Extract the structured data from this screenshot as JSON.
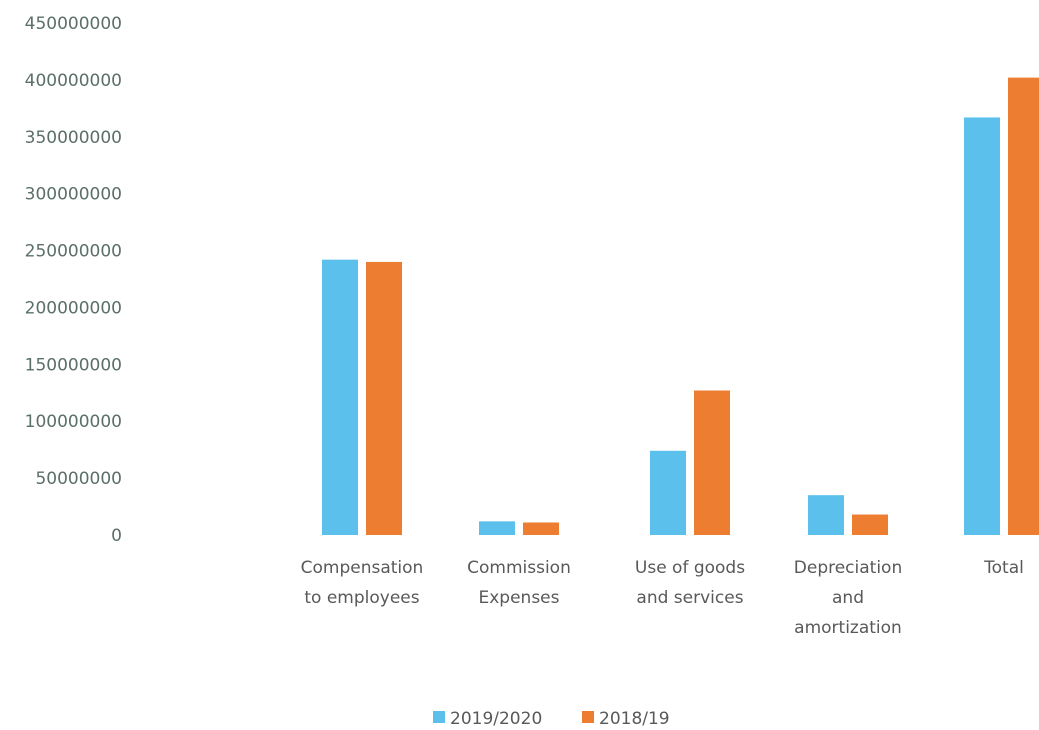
{
  "chart_data": {
    "type": "bar",
    "title": "",
    "xlabel": "",
    "ylabel": "",
    "categories": [
      [
        "Compensation",
        "to employees"
      ],
      [
        "Commission",
        "Expenses"
      ],
      [
        "Use of goods",
        "and services"
      ],
      [
        "Depreciation",
        "and",
        "amortization"
      ],
      [
        "Total"
      ]
    ],
    "series": [
      {
        "name": "2019/2020",
        "color": "#5bc0eb",
        "values": [
          242000000,
          12000000,
          74000000,
          35000000,
          367000000
        ]
      },
      {
        "name": "2018/19",
        "color": "#ed7d31",
        "values": [
          240000000,
          11000000,
          127000000,
          18000000,
          402000000
        ]
      }
    ],
    "ylim": [
      0,
      450000000
    ],
    "yticks": [
      0,
      50000000,
      100000000,
      150000000,
      200000000,
      250000000,
      300000000,
      350000000,
      400000000,
      450000000
    ],
    "grid": false,
    "legend": "bottom-center"
  }
}
